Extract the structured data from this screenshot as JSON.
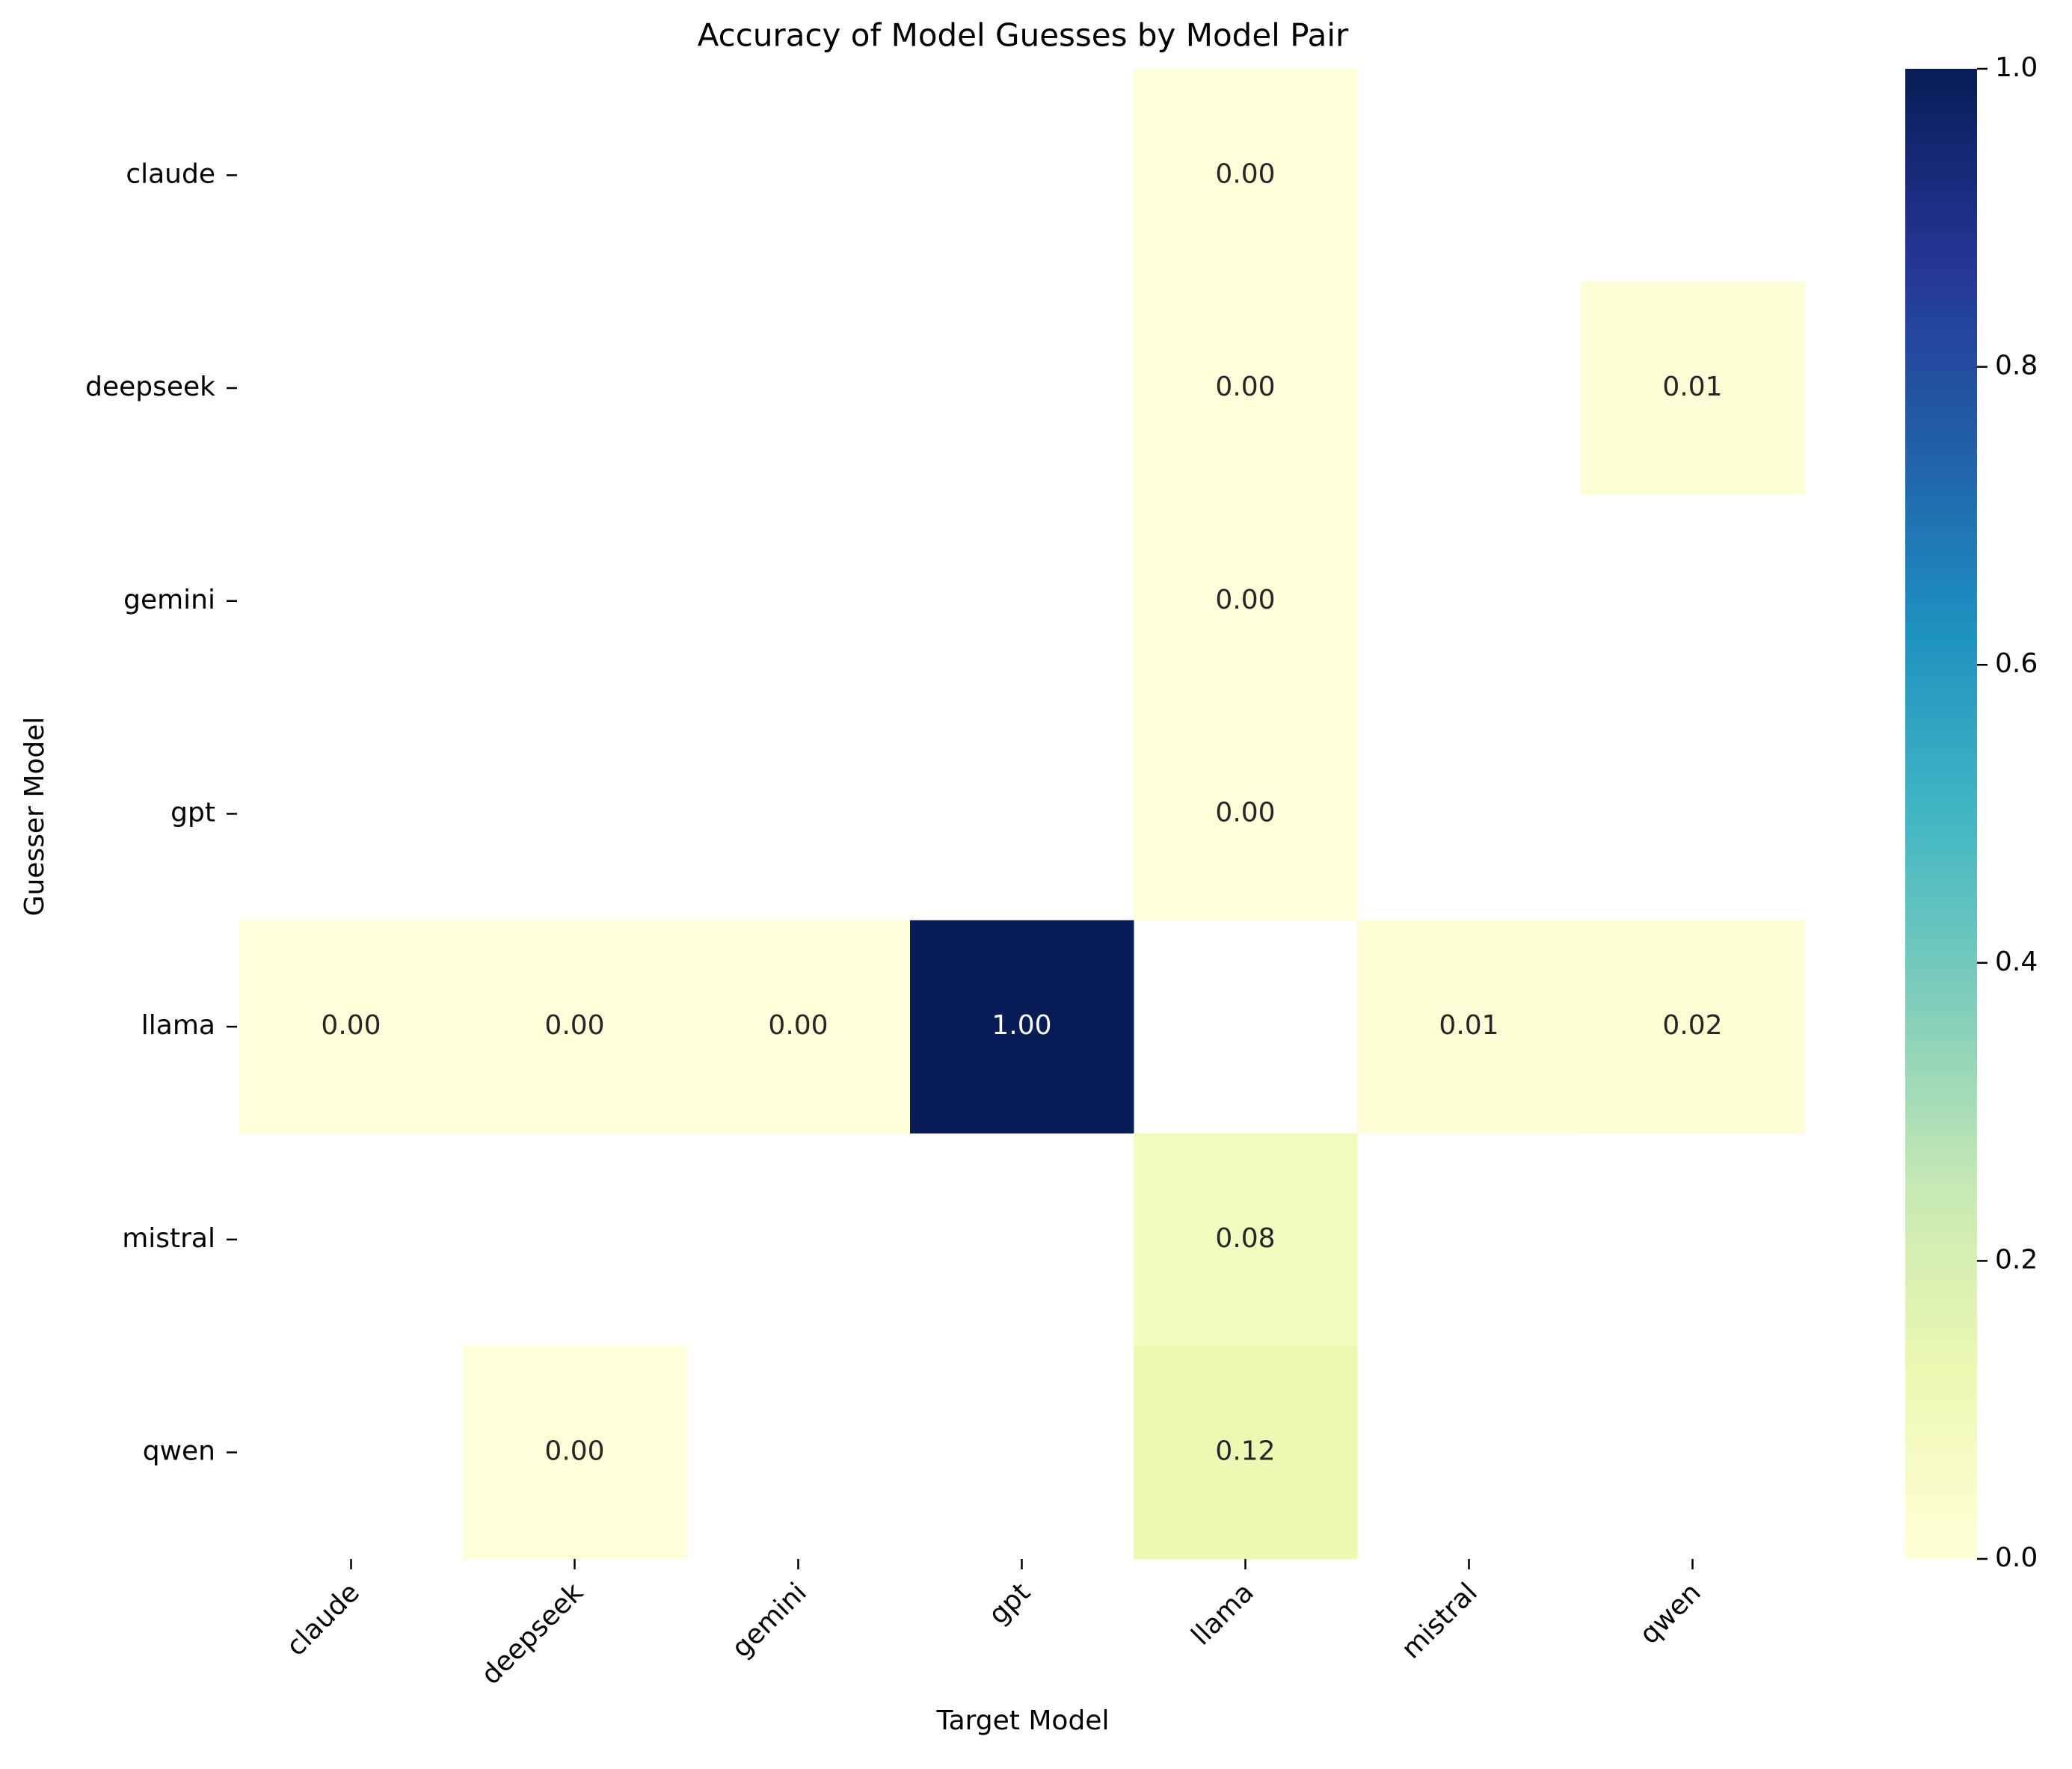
{
  "chart_data": {
    "type": "heatmap",
    "title": "Accuracy of Model Guesses by Model Pair",
    "xlabel": "Target Model",
    "ylabel": "Guesser Model",
    "x_categories": [
      "claude",
      "deepseek",
      "gemini",
      "gpt",
      "llama",
      "mistral",
      "qwen"
    ],
    "y_categories": [
      "claude",
      "deepseek",
      "gemini",
      "gpt",
      "llama",
      "mistral",
      "qwen"
    ],
    "value_format": "2 decimals",
    "cells": [
      {
        "guesser": "claude",
        "target": "llama",
        "value": 0.0,
        "label": "0.00"
      },
      {
        "guesser": "deepseek",
        "target": "llama",
        "value": 0.0,
        "label": "0.00"
      },
      {
        "guesser": "deepseek",
        "target": "qwen",
        "value": 0.01,
        "label": "0.01"
      },
      {
        "guesser": "gemini",
        "target": "llama",
        "value": 0.0,
        "label": "0.00"
      },
      {
        "guesser": "gpt",
        "target": "llama",
        "value": 0.0,
        "label": "0.00"
      },
      {
        "guesser": "llama",
        "target": "claude",
        "value": 0.0,
        "label": "0.00"
      },
      {
        "guesser": "llama",
        "target": "deepseek",
        "value": 0.0,
        "label": "0.00"
      },
      {
        "guesser": "llama",
        "target": "gemini",
        "value": 0.0,
        "label": "0.00"
      },
      {
        "guesser": "llama",
        "target": "gpt",
        "value": 1.0,
        "label": "1.00"
      },
      {
        "guesser": "llama",
        "target": "mistral",
        "value": 0.01,
        "label": "0.01"
      },
      {
        "guesser": "llama",
        "target": "qwen",
        "value": 0.02,
        "label": "0.02"
      },
      {
        "guesser": "mistral",
        "target": "llama",
        "value": 0.08,
        "label": "0.08"
      },
      {
        "guesser": "qwen",
        "target": "deepseek",
        "value": 0.0,
        "label": "0.00"
      },
      {
        "guesser": "qwen",
        "target": "llama",
        "value": 0.12,
        "label": "0.12"
      }
    ],
    "colorbar": {
      "colormap": "YlGnBu",
      "range": [
        0,
        1
      ],
      "ticks": [
        "0.0",
        "0.2",
        "0.4",
        "0.6",
        "0.8",
        "1.0"
      ]
    }
  }
}
